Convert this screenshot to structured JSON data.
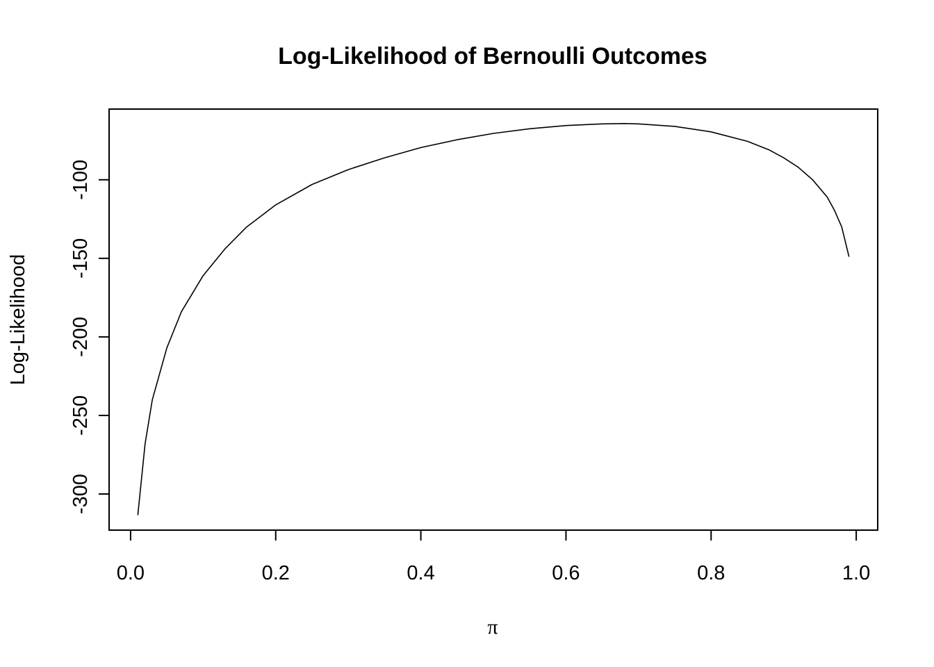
{
  "chart_data": {
    "type": "line",
    "title": "Log-Likelihood of Bernoulli Outcomes",
    "xlabel": "π",
    "ylabel": "Log-Likelihood",
    "xlim": [
      -0.0296,
      1.0296
    ],
    "ylim": [
      -323.0,
      -55.0
    ],
    "x_ticks": [
      {
        "value": 0.0,
        "label": "0.0"
      },
      {
        "value": 0.2,
        "label": "0.2"
      },
      {
        "value": 0.4,
        "label": "0.4"
      },
      {
        "value": 0.6,
        "label": "0.6"
      },
      {
        "value": 0.8,
        "label": "0.8"
      },
      {
        "value": 1.0,
        "label": "1.0"
      }
    ],
    "y_ticks": [
      {
        "value": -300,
        "label": "-300"
      },
      {
        "value": -250,
        "label": "-250"
      },
      {
        "value": -200,
        "label": "-200"
      },
      {
        "value": -150,
        "label": "-150"
      },
      {
        "value": -100,
        "label": "-100"
      }
    ],
    "grid": false,
    "legend": "none",
    "line_color": "#000000",
    "series": [
      {
        "x": [
          0.01,
          0.02,
          0.03,
          0.05,
          0.07,
          0.1,
          0.13,
          0.16,
          0.2,
          0.25,
          0.3,
          0.35,
          0.4,
          0.45,
          0.5,
          0.55,
          0.6,
          0.65,
          0.68,
          0.7,
          0.75,
          0.8,
          0.85,
          0.88,
          0.9,
          0.92,
          0.94,
          0.96,
          0.97,
          0.98,
          0.99
        ],
        "y": [
          -313.5,
          -268.0,
          -240.0,
          -207.0,
          -184.0,
          -161.0,
          -144.0,
          -130.0,
          -116.0,
          -103.0,
          -93.5,
          -86.0,
          -79.5,
          -74.5,
          -70.5,
          -67.5,
          -65.5,
          -64.4,
          -64.2,
          -64.4,
          -66.0,
          -69.5,
          -75.5,
          -81.0,
          -86.0,
          -92.0,
          -100.0,
          -111.0,
          -119.5,
          -130.0,
          -149.0
        ]
      }
    ]
  }
}
